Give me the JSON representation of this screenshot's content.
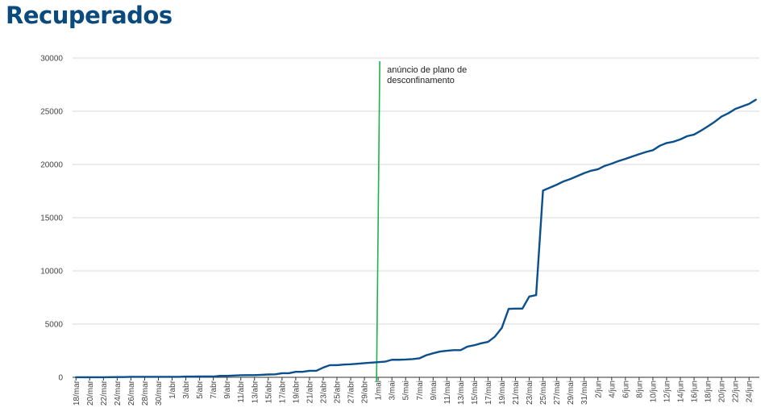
{
  "chart_data": {
    "type": "line",
    "title": "Recuperados",
    "title_color": "#0b4a7d",
    "line_color": "#0b4f8c",
    "annotation_line_color": "#1db34a",
    "grid": true,
    "ylim": [
      0,
      30000
    ],
    "yticks": [
      0,
      5000,
      10000,
      15000,
      20000,
      25000,
      30000
    ],
    "xtick_labels": [
      "18/mar",
      "20/mar",
      "22/mar",
      "24/mar",
      "26/mar",
      "28/mar",
      "30/mar",
      "1/abr",
      "3/abr",
      "5/abr",
      "7/abr",
      "9/abr",
      "11/abr",
      "13/abr",
      "15/abr",
      "17/abr",
      "19/abr",
      "21/abr",
      "23/abr",
      "25/abr",
      "27/abr",
      "29/abr",
      "1/mai",
      "3/mai",
      "5/mai",
      "7/mai",
      "9/mai",
      "11/mai",
      "13/mai",
      "15/mai",
      "17/mai",
      "19/mai",
      "21/mai",
      "23/mai",
      "25/mai",
      "27/mai",
      "29/mai",
      "31/mai",
      "2/jun",
      "4/jun",
      "6/jun",
      "8/jun",
      "10/jun",
      "12/jun",
      "14/jun",
      "16/jun",
      "18/jun",
      "20/jun",
      "22/jun",
      "24/jun"
    ],
    "annotation": {
      "x_label": "1/mai",
      "lines": [
        "anúncio de plano de",
        "desconfinamento"
      ]
    },
    "x": [
      "18/mar",
      "19/mar",
      "20/mar",
      "21/mar",
      "22/mar",
      "23/mar",
      "24/mar",
      "25/mar",
      "26/mar",
      "27/mar",
      "28/mar",
      "29/mar",
      "30/mar",
      "31/mar",
      "1/abr",
      "2/abr",
      "3/abr",
      "4/abr",
      "5/abr",
      "6/abr",
      "7/abr",
      "8/abr",
      "9/abr",
      "10/abr",
      "11/abr",
      "12/abr",
      "13/abr",
      "14/abr",
      "15/abr",
      "16/abr",
      "17/abr",
      "18/abr",
      "19/abr",
      "20/abr",
      "21/abr",
      "22/abr",
      "23/abr",
      "24/abr",
      "25/abr",
      "26/abr",
      "27/abr",
      "28/abr",
      "29/abr",
      "30/abr",
      "1/mai",
      "2/mai",
      "3/mai",
      "4/mai",
      "5/mai",
      "6/mai",
      "7/mai",
      "8/mai",
      "9/mai",
      "10/mai",
      "11/mai",
      "12/mai",
      "13/mai",
      "14/mai",
      "15/mai",
      "16/mai",
      "17/mai",
      "18/mai",
      "19/mai",
      "20/mai",
      "21/mai",
      "22/mai",
      "23/mai",
      "24/mai",
      "25/mai",
      "26/mai",
      "27/mai",
      "28/mai",
      "29/mai",
      "30/mai",
      "31/mai",
      "1/jun",
      "2/jun",
      "3/jun",
      "4/jun",
      "5/jun",
      "6/jun",
      "7/jun",
      "8/jun",
      "9/jun",
      "10/jun",
      "11/jun",
      "12/jun",
      "13/jun",
      "14/jun",
      "15/jun",
      "16/jun",
      "17/jun",
      "18/jun",
      "19/jun",
      "20/jun",
      "21/jun",
      "22/jun",
      "23/jun",
      "24/jun",
      "25/jun"
    ],
    "values": [
      2,
      3,
      3,
      5,
      5,
      14,
      22,
      22,
      43,
      43,
      43,
      43,
      43,
      43,
      43,
      43,
      68,
      68,
      75,
      75,
      75,
      140,
      140,
      169,
      196,
      205,
      205,
      233,
      266,
      277,
      383,
      383,
      519,
      519,
      610,
      610,
      917,
      1143,
      1143,
      1201,
      1228,
      1277,
      1329,
      1374,
      1424,
      1470,
      1647,
      1647,
      1671,
      1712,
      1781,
      2076,
      2258,
      2422,
      2499,
      2549,
      2549,
      2887,
      3013,
      3196,
      3328,
      3822,
      4636,
      6430,
      6452,
      6452,
      7590,
      7723,
      17549,
      17822,
      18096,
      18411,
      18637,
      18911,
      19186,
      19409,
      19552,
      19869,
      20079,
      20323,
      20526,
      20746,
      20969,
      21175,
      21339,
      21757,
      22015,
      22137,
      22357,
      22660,
      22808,
      23175,
      23580,
      24010,
      24505,
      24817,
      25217,
      25457,
      25690,
      26083
    ]
  }
}
